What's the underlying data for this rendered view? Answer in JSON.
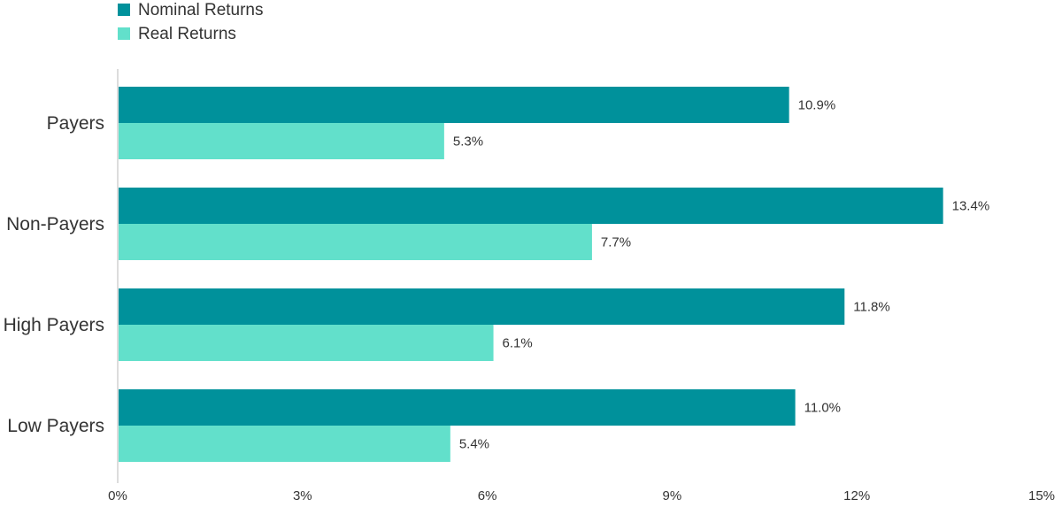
{
  "chart_data": {
    "type": "bar",
    "orientation": "horizontal",
    "categories": [
      "Payers",
      "Non-Payers",
      "High Payers",
      "Low Payers"
    ],
    "series": [
      {
        "name": "Nominal Returns",
        "color": "#00919B",
        "values": [
          10.9,
          13.4,
          11.8,
          11.0
        ],
        "labels": [
          "10.9%",
          "13.4%",
          "11.8%",
          "11.0%"
        ]
      },
      {
        "name": "Real Returns",
        "color": "#62E0CB",
        "values": [
          5.3,
          7.7,
          6.1,
          5.4
        ],
        "labels": [
          "5.3%",
          "7.7%",
          "6.1%",
          "5.4%"
        ]
      }
    ],
    "xlim": [
      0,
      15
    ],
    "xticks": [
      0,
      3,
      6,
      9,
      12,
      15
    ],
    "xtick_labels": [
      "0%",
      "3%",
      "6%",
      "9%",
      "12%",
      "15%"
    ],
    "grid": false,
    "legend_position": "top-left"
  }
}
